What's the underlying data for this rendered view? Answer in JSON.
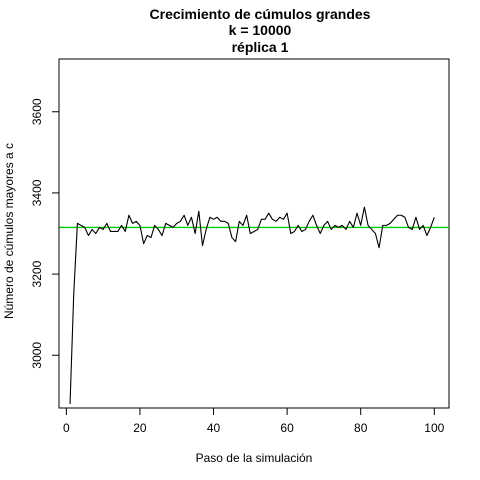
{
  "chart_data": {
    "type": "line",
    "title_lines": [
      "Crecimiento de cúmulos grandes",
      "k = 10000",
      "réplica 1"
    ],
    "xlabel": "Paso de la simulación",
    "ylabel": "Número de cúmulos mayores a c",
    "xlim": [
      -2,
      104
    ],
    "ylim": [
      2870,
      3730
    ],
    "xticks": [
      0,
      20,
      40,
      60,
      80,
      100
    ],
    "yticks": [
      3000,
      3200,
      3400,
      3600
    ],
    "grid": false,
    "series": [
      {
        "color": "#000000",
        "x": [
          1,
          2,
          3,
          4,
          5,
          6,
          7,
          8,
          9,
          10,
          11,
          12,
          13,
          14,
          15,
          16,
          17,
          18,
          19,
          20,
          21,
          22,
          23,
          24,
          25,
          26,
          27,
          28,
          29,
          30,
          31,
          32,
          33,
          34,
          35,
          36,
          37,
          38,
          39,
          40,
          41,
          42,
          43,
          44,
          45,
          46,
          47,
          48,
          49,
          50,
          51,
          52,
          53,
          54,
          55,
          56,
          57,
          58,
          59,
          60,
          61,
          62,
          63,
          64,
          65,
          66,
          67,
          68,
          69,
          70,
          71,
          72,
          73,
          74,
          75,
          76,
          77,
          78,
          79,
          80,
          81,
          82,
          83,
          84,
          85,
          86,
          87,
          88,
          89,
          90,
          91,
          92,
          93,
          94,
          95,
          96,
          97,
          98,
          99,
          100
        ],
        "y": [
          2880,
          3150,
          3325,
          3320,
          3315,
          3295,
          3310,
          3300,
          3315,
          3310,
          3325,
          3305,
          3305,
          3305,
          3320,
          3305,
          3345,
          3325,
          3330,
          3320,
          3275,
          3295,
          3290,
          3320,
          3310,
          3295,
          3325,
          3320,
          3315,
          3325,
          3330,
          3345,
          3320,
          3340,
          3300,
          3355,
          3270,
          3310,
          3340,
          3335,
          3340,
          3330,
          3330,
          3325,
          3290,
          3280,
          3330,
          3320,
          3345,
          3300,
          3305,
          3310,
          3335,
          3335,
          3350,
          3335,
          3330,
          3340,
          3335,
          3350,
          3300,
          3305,
          3320,
          3305,
          3310,
          3330,
          3345,
          3320,
          3300,
          3320,
          3330,
          3310,
          3320,
          3315,
          3320,
          3310,
          3330,
          3315,
          3350,
          3320,
          3365,
          3320,
          3310,
          3300,
          3265,
          3320,
          3320,
          3325,
          3335,
          3345,
          3345,
          3340,
          3315,
          3310,
          3340,
          3310,
          3320,
          3295,
          3315,
          3340
        ]
      }
    ],
    "reference_line": {
      "y": 3315,
      "color": "#00cc00"
    }
  }
}
